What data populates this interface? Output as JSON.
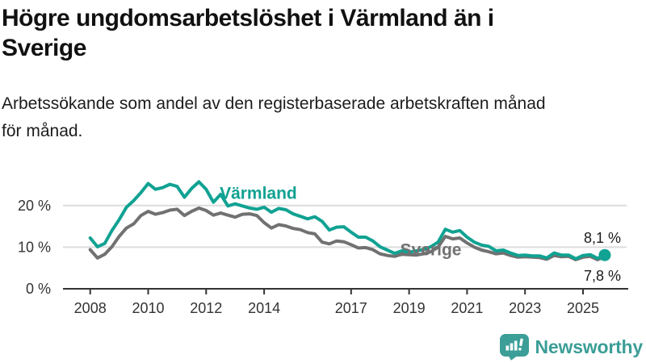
{
  "header": {
    "title": "Högre ungdomsarbetslöshet i Värmland än i Sverige",
    "title_lines": [
      "Högre ungdomsarbetslöshet i Värmland än i",
      "Sverige"
    ],
    "subtitle": "Arbetssökande som andel av den registerbaserade arbetskraften månad för månad.",
    "subtitle_lines": [
      "Arbetssökande som andel av den registerbaserade arbetskraften månad",
      "för månad."
    ]
  },
  "colors": {
    "varmland": "#10a292",
    "sverige": "#717171",
    "grid": "#dcdcdc",
    "axis": "#333333",
    "tick_text": "#333333",
    "end_label_text": "#1a1a1a",
    "brand": "#3b9e97"
  },
  "footer": {
    "brand_name": "Newsworthy",
    "logo_icon": "bar-chart-speech-bubble-icon"
  },
  "chart_data": {
    "type": "line",
    "title": "Högre ungdomsarbetslöshet i Värmland än i Sverige",
    "subtitle": "Arbetssökande som andel av den registerbaserade arbetskraften månad för månad.",
    "xlabel": "",
    "ylabel": "",
    "grid": "horizontal",
    "legend_position": "inline-labels",
    "ylim": [
      0,
      31
    ],
    "xlim": [
      2007.1,
      2026.5
    ],
    "y_ticks": [
      {
        "value": 0,
        "label": "0 %"
      },
      {
        "value": 10,
        "label": "10 %"
      },
      {
        "value": 20,
        "label": "20 %"
      }
    ],
    "x_ticks": [
      {
        "value": 2008,
        "label": "2008"
      },
      {
        "value": 2010,
        "label": "2010"
      },
      {
        "value": 2012,
        "label": "2012"
      },
      {
        "value": 2014,
        "label": "2014"
      },
      {
        "value": 2017,
        "label": "2017"
      },
      {
        "value": 2019,
        "label": "2019"
      },
      {
        "value": 2021,
        "label": "2021"
      },
      {
        "value": 2023,
        "label": "2023"
      },
      {
        "value": 2025,
        "label": "2025"
      }
    ],
    "x": [
      2008,
      2008.25,
      2008.5,
      2008.75,
      2009,
      2009.25,
      2009.5,
      2009.75,
      2010,
      2010.25,
      2010.5,
      2010.75,
      2011,
      2011.25,
      2011.5,
      2011.75,
      2012,
      2012.25,
      2012.5,
      2012.75,
      2013,
      2013.25,
      2013.5,
      2013.75,
      2014,
      2014.25,
      2014.5,
      2014.75,
      2015,
      2015.25,
      2015.5,
      2015.75,
      2016,
      2016.25,
      2016.5,
      2016.75,
      2017,
      2017.25,
      2017.5,
      2017.75,
      2018,
      2018.25,
      2018.5,
      2018.75,
      2019,
      2019.25,
      2019.5,
      2019.75,
      2020,
      2020.25,
      2020.5,
      2020.75,
      2021,
      2021.25,
      2021.5,
      2021.75,
      2022,
      2022.25,
      2022.5,
      2022.75,
      2023,
      2023.25,
      2023.5,
      2023.75,
      2024,
      2024.25,
      2024.5,
      2024.75,
      2025,
      2025.25,
      2025.5,
      2025.75
    ],
    "series": [
      {
        "name": "Värmland",
        "key": "varmland",
        "color": "#10a292",
        "end_dot": true,
        "end_label": "8,1 %",
        "end_value": 8.1,
        "label_pos": {
          "x": 2013.8,
          "y": 23.0
        },
        "values": [
          12.2,
          10.1,
          10.9,
          14.0,
          16.6,
          19.6,
          21.2,
          23.1,
          25.3,
          23.9,
          24.3,
          25.1,
          24.6,
          22.0,
          24.1,
          25.7,
          23.9,
          20.8,
          22.7,
          19.9,
          20.4,
          19.9,
          19.4,
          19.1,
          19.6,
          18.4,
          19.3,
          19.0,
          18.0,
          17.4,
          16.8,
          17.3,
          16.2,
          14.1,
          14.8,
          14.9,
          13.6,
          12.4,
          12.4,
          11.5,
          10.1,
          9.3,
          8.5,
          9.1,
          8.8,
          9.1,
          9.4,
          10.1,
          11.2,
          14.3,
          13.6,
          14.0,
          12.4,
          11.2,
          10.5,
          10.2,
          9.1,
          9.3,
          8.6,
          8.0,
          8.1,
          7.9,
          7.9,
          7.4,
          8.6,
          8.1,
          8.1,
          7.2,
          8.0,
          8.2,
          7.3,
          8.1
        ]
      },
      {
        "name": "Sverige",
        "key": "sverige",
        "color": "#717171",
        "end_dot": false,
        "end_label": "7,8 %",
        "end_value": 7.8,
        "label_pos": {
          "x": 2019.75,
          "y": 9.4
        },
        "values": [
          9.4,
          7.4,
          8.3,
          10.1,
          12.6,
          14.6,
          15.6,
          17.6,
          18.6,
          17.9,
          18.3,
          18.9,
          19.1,
          17.6,
          18.6,
          19.4,
          18.8,
          17.7,
          18.2,
          17.7,
          17.2,
          17.9,
          18.0,
          17.6,
          15.9,
          14.6,
          15.4,
          15.1,
          14.5,
          14.2,
          13.5,
          13.2,
          11.2,
          10.8,
          11.5,
          11.3,
          10.6,
          9.8,
          9.9,
          9.4,
          8.4,
          8.0,
          7.8,
          8.3,
          8.2,
          8.1,
          8.4,
          8.9,
          10.0,
          12.6,
          12.0,
          12.2,
          11.0,
          10.0,
          9.3,
          8.9,
          8.4,
          8.6,
          8.0,
          7.6,
          7.7,
          7.6,
          7.5,
          7.1,
          8.0,
          7.7,
          7.8,
          7.0,
          7.6,
          7.8,
          7.0,
          7.8
        ]
      }
    ]
  }
}
